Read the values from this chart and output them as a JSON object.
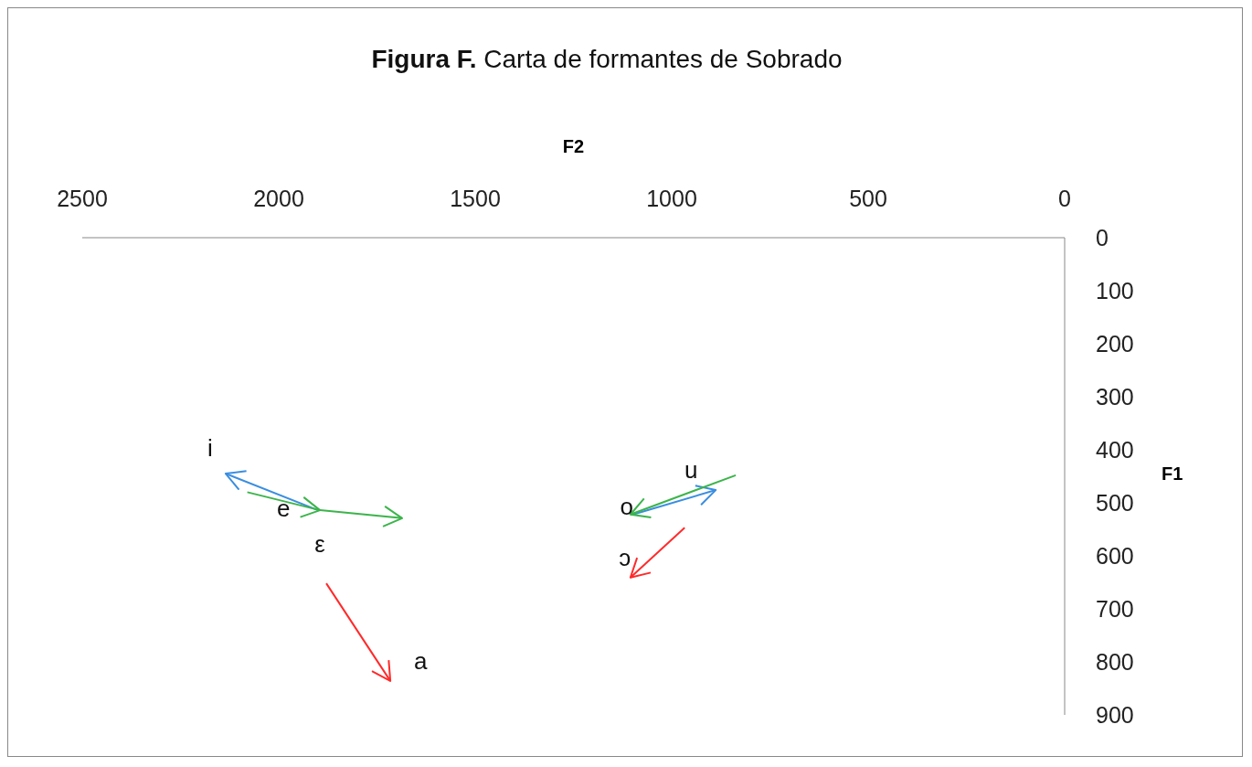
{
  "chart_data": {
    "type": "line",
    "title": "Figura F. Carta de formantes de Sobrado",
    "xlabel": "F2",
    "ylabel": "F1",
    "xlim": [
      2500,
      0
    ],
    "xticks": [
      2500,
      2000,
      1500,
      1000,
      500,
      0
    ],
    "ylim": [
      900,
      0
    ],
    "yticks": [
      0,
      100,
      200,
      300,
      400,
      500,
      600,
      700,
      800,
      900
    ],
    "grid": false,
    "marker": "none",
    "line_style": "solid",
    "series": [
      {
        "color": "#3a8ee0",
        "x": [
          1900,
          2135
        ],
        "values": [
          514,
          445
        ]
      },
      {
        "color": "#3a8ee0",
        "x": [
          1098,
          888
        ],
        "values": [
          522,
          476
        ]
      },
      {
        "color": "#3cb44b",
        "x": [
          2080,
          1895,
          1686
        ],
        "values": [
          480,
          514,
          529
        ]
      },
      {
        "color": "#3cb44b",
        "x": [
          837,
          1105
        ],
        "values": [
          448,
          522
        ]
      },
      {
        "color": "#ff2a2a",
        "x": [
          1879,
          1716
        ],
        "values": [
          652,
          836
        ]
      },
      {
        "color": "#ff2a2a",
        "x": [
          967,
          1105
        ],
        "values": [
          547,
          641
        ]
      }
    ],
    "annotations": [
      {
        "text": "i",
        "x": 2135,
        "y": 445
      },
      {
        "text": "e",
        "x": 1895,
        "y": 514
      },
      {
        "text": "ε",
        "x": 1879,
        "y": 652
      },
      {
        "text": "a",
        "x": 1716,
        "y": 836
      },
      {
        "text": "u",
        "x": 888,
        "y": 476
      },
      {
        "text": "o",
        "x": 1105,
        "y": 522
      },
      {
        "text": "ɔ",
        "x": 1105,
        "y": 641
      }
    ]
  }
}
